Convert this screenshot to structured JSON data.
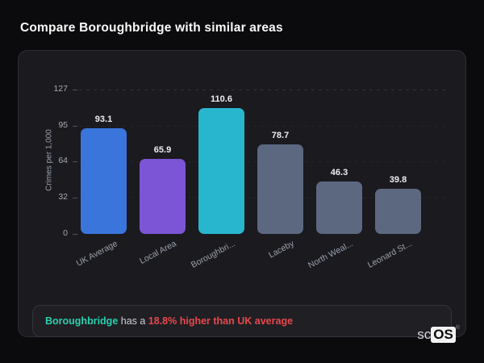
{
  "page": {
    "title": "Compare Boroughbridge with similar areas"
  },
  "chart_data": {
    "type": "bar",
    "title": "Compare Boroughbridge with similar areas",
    "xlabel": "",
    "ylabel": "Crimes per 1,000",
    "ylim": [
      0,
      127
    ],
    "yticks": [
      0,
      32,
      64,
      95,
      127
    ],
    "grid": "horizontal-dashed",
    "categories": [
      "UK Average",
      "Local Area",
      "Boroughbri...",
      "Laceby",
      "North Weal...",
      "Leonard St..."
    ],
    "values": [
      93.1,
      65.9,
      110.6,
      78.7,
      46.3,
      39.8
    ],
    "bar_colors": [
      "#3a75dc",
      "#7c55d6",
      "#28b6ce",
      "#5b6880",
      "#5b6880",
      "#5b6880"
    ],
    "highlight_category": "Boroughbridge"
  },
  "note": {
    "area": "Boroughbridge",
    "mid": " has a ",
    "stat": "18.8% higher than UK average",
    "area_color": "#2bd0ad",
    "stat_color": "#e8494d"
  },
  "logo": {
    "prefix": "sc",
    "suffix": "OS",
    "registered": "®"
  }
}
